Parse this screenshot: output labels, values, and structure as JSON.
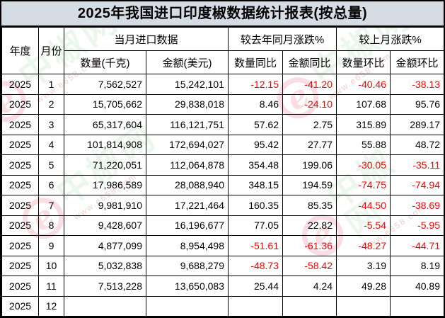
{
  "title": "2025年我国进口印度椒数据统计报表(按总量)",
  "chart_data": {
    "type": "table",
    "title": "2025年我国进口印度椒数据统计报表(按总量)",
    "header_groups": {
      "year": "年度",
      "month": "月份",
      "current_month": "当月进口数据",
      "yoy": "较去年同月涨跌%",
      "mom": "较上月涨跌%"
    },
    "columns": [
      "数量(千克)",
      "金额(美元)",
      "数量同比",
      "金额同比",
      "数量环比",
      "金额环比"
    ],
    "rows": [
      [
        "2025",
        "1",
        "7,562,527",
        "15,242,101",
        "-12.15",
        "-41.20",
        "-40.46",
        "-38.13"
      ],
      [
        "2025",
        "2",
        "15,705,662",
        "29,838,018",
        "8.46",
        "-24.10",
        "107.68",
        "95.76"
      ],
      [
        "2025",
        "3",
        "65,317,604",
        "116,121,751",
        "57.62",
        "2.75",
        "315.89",
        "289.17"
      ],
      [
        "2025",
        "4",
        "101,814,908",
        "172,694,027",
        "95.42",
        "27.77",
        "55.88",
        "48.72"
      ],
      [
        "2025",
        "5",
        "71,220,051",
        "112,064,878",
        "354.48",
        "199.06",
        "-30.05",
        "-35.11"
      ],
      [
        "2025",
        "6",
        "17,986,589",
        "28,088,940",
        "348.15",
        "194.59",
        "-74.75",
        "-74.94"
      ],
      [
        "2025",
        "7",
        "9,981,910",
        "17,221,464",
        "160.35",
        "85.35",
        "-44.50",
        "-38.69"
      ],
      [
        "2025",
        "8",
        "9,428,607",
        "16,196,677",
        "77.05",
        "22.82",
        "-5.54",
        "-5.95"
      ],
      [
        "2025",
        "9",
        "4,877,099",
        "8,954,498",
        "-51.61",
        "-61.36",
        "-48.27",
        "-44.71"
      ],
      [
        "2025",
        "10",
        "5,032,838",
        "9,688,279",
        "-48.73",
        "-58.42",
        "3.19",
        "8.19"
      ],
      [
        "2025",
        "11",
        "7,513,228",
        "13,650,083",
        "25.44",
        "4.24",
        "49.28",
        "40.89"
      ],
      [
        "2025",
        "12",
        "",
        "",
        "",
        "",
        "",
        ""
      ]
    ],
    "negative_color": "#ff0000"
  },
  "watermark": {
    "logo_letter": "e",
    "site_name": "中椒网",
    "url_text": "www.e658.com"
  },
  "colors": {
    "title_bg": "#d6dce4",
    "negative": "#ff0000",
    "border": "#000000",
    "watermark_green": "#d9eeda",
    "watermark_pink": "#f4bcc8",
    "watermark_red": "#ea9f9f"
  }
}
